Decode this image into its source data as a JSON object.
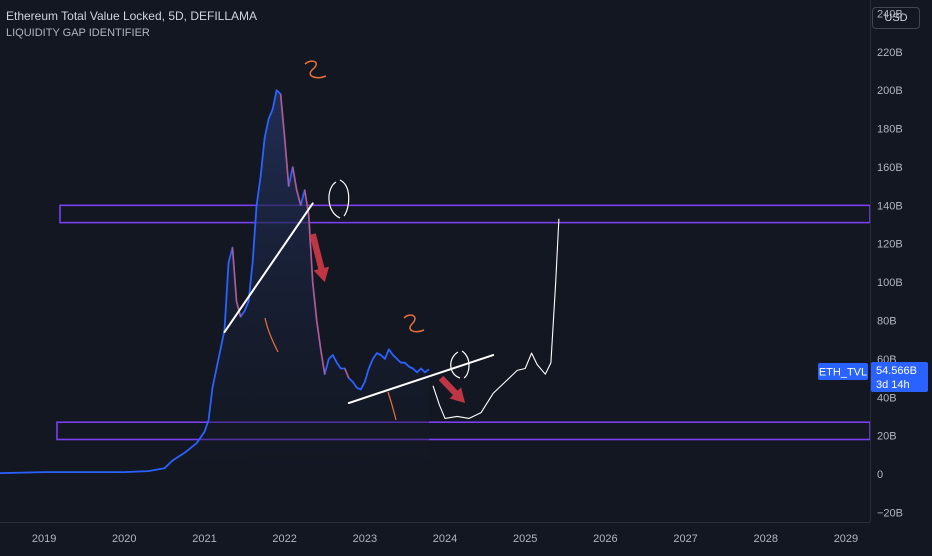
{
  "header": {
    "title": "Ethereum Total Value Locked, 5D, DEFILLAMA",
    "subtitle": "LIQUIDITY GAP IDENTIFIER",
    "currency_label": "USD"
  },
  "price_scale": {
    "ticks": [
      "240B",
      "220B",
      "200B",
      "180B",
      "160B",
      "140B",
      "120B",
      "100B",
      "80B",
      "60B",
      "40B",
      "20B",
      "0",
      "−20B"
    ]
  },
  "time_scale": {
    "ticks": [
      "2019",
      "2020",
      "2021",
      "2022",
      "2023",
      "2024",
      "2025",
      "2026",
      "2027",
      "2028",
      "2029"
    ]
  },
  "last_value": {
    "series_label": "ETH_TVL",
    "value": "54.566B",
    "countdown": "3d 14h"
  },
  "colors": {
    "background": "#131722",
    "series_line": "#2962ff",
    "series_fill": "#1e2a52",
    "down_candles": "#ef5350",
    "zone_border": "#7b3ff2",
    "arrow": "#d13a48",
    "trendline": "#ffffff",
    "annotation": "#e8703a",
    "badge": "#2962ff"
  },
  "chart_data": {
    "type": "area",
    "title": "Ethereum Total Value Locked, 5D, DEFILLAMA",
    "subtitle": "LIQUIDITY GAP IDENTIFIER",
    "xlabel": "",
    "ylabel": "",
    "x_range": [
      2018.45,
      2029.3
    ],
    "ylim": [
      -25,
      247
    ],
    "y_unit": "B USD",
    "grid": false,
    "series": [
      {
        "name": "ETH_TVL",
        "points": [
          [
            2018.45,
            0.5
          ],
          [
            2019.0,
            1
          ],
          [
            2019.5,
            1
          ],
          [
            2020.0,
            1
          ],
          [
            2020.3,
            1.5
          ],
          [
            2020.5,
            3
          ],
          [
            2020.6,
            7
          ],
          [
            2020.75,
            11
          ],
          [
            2020.9,
            16
          ],
          [
            2021.0,
            22
          ],
          [
            2021.05,
            28
          ],
          [
            2021.1,
            45
          ],
          [
            2021.15,
            55
          ],
          [
            2021.2,
            65
          ],
          [
            2021.25,
            75
          ],
          [
            2021.3,
            110
          ],
          [
            2021.35,
            118
          ],
          [
            2021.4,
            90
          ],
          [
            2021.45,
            82
          ],
          [
            2021.5,
            85
          ],
          [
            2021.55,
            90
          ],
          [
            2021.6,
            110
          ],
          [
            2021.65,
            140
          ],
          [
            2021.7,
            155
          ],
          [
            2021.75,
            175
          ],
          [
            2021.8,
            185
          ],
          [
            2021.85,
            190
          ],
          [
            2021.9,
            200
          ],
          [
            2021.95,
            198
          ],
          [
            2022.0,
            175
          ],
          [
            2022.05,
            150
          ],
          [
            2022.1,
            160
          ],
          [
            2022.15,
            148
          ],
          [
            2022.2,
            140
          ],
          [
            2022.25,
            148
          ],
          [
            2022.3,
            135
          ],
          [
            2022.35,
            100
          ],
          [
            2022.4,
            80
          ],
          [
            2022.45,
            65
          ],
          [
            2022.5,
            52
          ],
          [
            2022.55,
            60
          ],
          [
            2022.6,
            62
          ],
          [
            2022.65,
            58
          ],
          [
            2022.7,
            55
          ],
          [
            2022.75,
            55
          ],
          [
            2022.8,
            50
          ],
          [
            2022.85,
            48
          ],
          [
            2022.9,
            45
          ],
          [
            2022.95,
            44
          ],
          [
            2023.0,
            48
          ],
          [
            2023.05,
            55
          ],
          [
            2023.1,
            60
          ],
          [
            2023.15,
            63
          ],
          [
            2023.2,
            62
          ],
          [
            2023.25,
            60
          ],
          [
            2023.3,
            65
          ],
          [
            2023.35,
            62
          ],
          [
            2023.4,
            60
          ],
          [
            2023.45,
            58
          ],
          [
            2023.5,
            58
          ],
          [
            2023.55,
            56
          ],
          [
            2023.6,
            55
          ],
          [
            2023.65,
            53
          ],
          [
            2023.7,
            55
          ],
          [
            2023.75,
            53
          ],
          [
            2023.8,
            54.566
          ]
        ],
        "last_value": 54.566
      }
    ],
    "annotations": {
      "zones": [
        {
          "y_range": [
            131,
            140
          ]
        },
        {
          "y_range": [
            18,
            27
          ]
        }
      ],
      "trendlines": [
        {
          "from": [
            2021.25,
            74
          ],
          "to": [
            2022.35,
            141
          ]
        },
        {
          "from": [
            2022.8,
            37
          ],
          "to": [
            2024.6,
            62
          ]
        }
      ],
      "projection": [
        [
          2023.85,
          46
        ],
        [
          2023.93,
          36
        ],
        [
          2024.0,
          29
        ],
        [
          2024.15,
          30
        ],
        [
          2024.3,
          29
        ],
        [
          2024.45,
          32
        ],
        [
          2024.6,
          42
        ],
        [
          2024.75,
          48
        ],
        [
          2024.9,
          54
        ],
        [
          2025.0,
          55
        ],
        [
          2025.08,
          63
        ],
        [
          2025.15,
          57
        ],
        [
          2025.25,
          52
        ],
        [
          2025.32,
          58
        ],
        [
          2025.38,
          100
        ],
        [
          2025.42,
          133
        ]
      ],
      "arrows": [
        {
          "from": [
            2022.35,
            125
          ],
          "to": [
            2022.5,
            100
          ]
        },
        {
          "from": [
            2023.95,
            50
          ],
          "to": [
            2024.25,
            37
          ]
        }
      ]
    }
  }
}
